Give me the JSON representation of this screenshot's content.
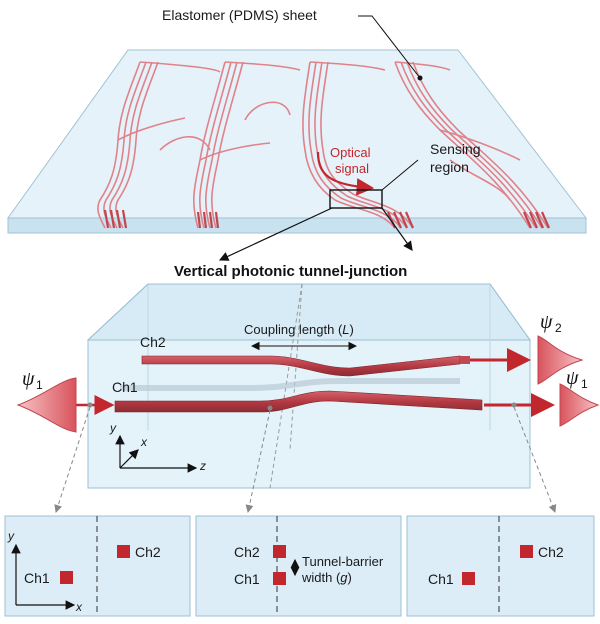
{
  "top": {
    "sheet_label": "Elastomer (PDMS) sheet",
    "optical_signal_line1": "Optical",
    "optical_signal_line2": "signal",
    "sensing_line1": "Sensing",
    "sensing_line2": "region"
  },
  "middle": {
    "title": "Vertical photonic tunnel-junction",
    "coupling_prefix": "Coupling length (",
    "coupling_var": "L",
    "coupling_suffix": ")",
    "ch2": "Ch2",
    "ch1": "Ch1",
    "psi1_in": "ψ",
    "psi1_in_sub": "1",
    "psi2_out": "ψ",
    "psi2_out_sub": "2",
    "psi1_out": "ψ",
    "psi1_out_sub": "1",
    "axis_y": "y",
    "axis_x": "x",
    "axis_z": "z"
  },
  "bottom": {
    "left": {
      "ch1": "Ch1",
      "ch2": "Ch2",
      "axis_y": "y",
      "axis_x": "x"
    },
    "center": {
      "ch1": "Ch1",
      "ch2": "Ch2",
      "barrier_line1": "Tunnel-barrier",
      "barrier_line2_prefix": "width (",
      "barrier_var": "g",
      "barrier_line2_suffix": ")"
    },
    "right": {
      "ch1": "Ch1",
      "ch2": "Ch2"
    }
  },
  "colors": {
    "waveguide": "#b53a43",
    "waveguide_light": "#e0828a",
    "accent_red": "#c1272d",
    "glass_fill": "#e3f1f9",
    "glass_edge": "#8fb4c8",
    "panel_fill": "#dcedf7"
  }
}
